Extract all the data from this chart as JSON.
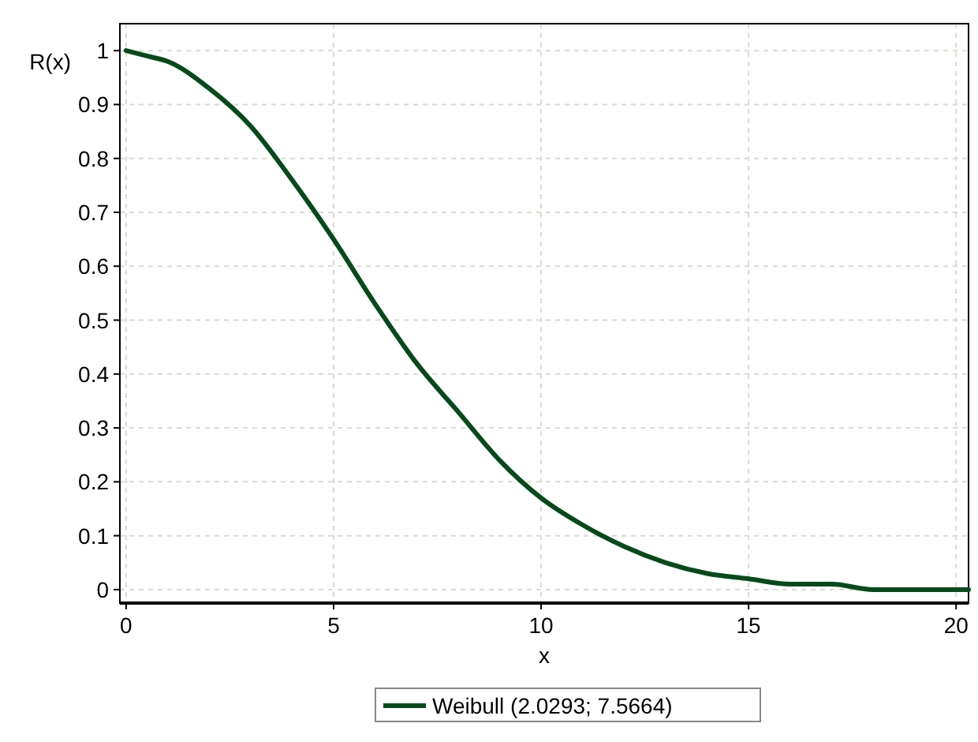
{
  "chart_data": {
    "type": "line",
    "xlabel": "x",
    "ylabel": "R(x)",
    "x": [
      0,
      0.5,
      1,
      2,
      3,
      4,
      5,
      6,
      7,
      8,
      9,
      10,
      11,
      12,
      13,
      14,
      15,
      16,
      17,
      18,
      19,
      20,
      20.3
    ],
    "series": [
      {
        "name": "Weibull  (2.0293; 7.5664)",
        "color": "#064a1c",
        "values": [
          1,
          0.99,
          0.98,
          0.93,
          0.86,
          0.76,
          0.65,
          0.53,
          0.42,
          0.33,
          0.24,
          0.17,
          0.12,
          0.08,
          0.05,
          0.03,
          0.02,
          0.01,
          0.01,
          0,
          0,
          0,
          0
        ]
      }
    ],
    "xlim": [
      -0.15,
      20.3
    ],
    "xticks": [
      0,
      5,
      10,
      15,
      20
    ],
    "ylim": [
      -0.025,
      1.05
    ],
    "yticks": [
      0,
      0.1,
      0.2,
      0.3,
      0.4,
      0.5,
      0.6,
      0.7,
      0.8,
      0.9,
      1
    ],
    "grid": true,
    "legend": "bottom",
    "marker": "none",
    "line_style": "solid"
  }
}
